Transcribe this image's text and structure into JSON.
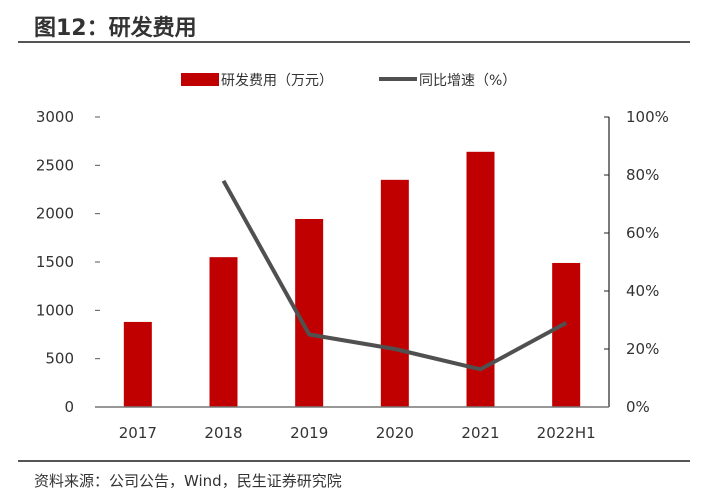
{
  "title": "图12：研发费用",
  "source": "资料来源：公司公告，Wind，民生证券研究院",
  "colors": {
    "bar": "#C00000",
    "line": "#505050"
  },
  "chart_data": {
    "type": "bar+line",
    "categories": [
      "2017",
      "2018",
      "2019",
      "2020",
      "2021",
      "2022H1"
    ],
    "series": [
      {
        "name": "研发费用（万元）",
        "type": "bar",
        "axis": "left",
        "values": [
          880,
          1550,
          1945,
          2350,
          2640,
          1490
        ]
      },
      {
        "name": "同比增速（%）",
        "type": "line",
        "axis": "right",
        "values": [
          null,
          78,
          25,
          20,
          13,
          29
        ]
      }
    ],
    "left_axis": {
      "range": [
        0,
        3000
      ],
      "ticks": [
        "0",
        "500",
        "1000",
        "1500",
        "2000",
        "2500",
        "3000"
      ]
    },
    "right_axis": {
      "range": [
        0,
        100
      ],
      "ticks": [
        "0%",
        "20%",
        "40%",
        "60%",
        "80%",
        "100%"
      ]
    },
    "legend": "top",
    "grid": false
  }
}
